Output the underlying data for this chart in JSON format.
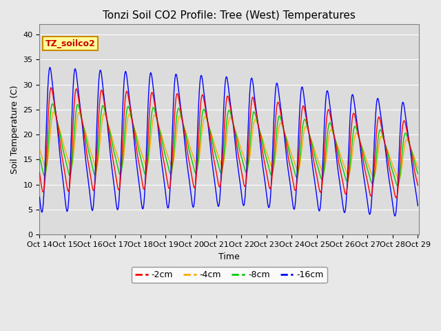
{
  "title": "Tonzi Soil CO2 Profile: Tree (West) Temperatures",
  "xlabel": "Time",
  "ylabel": "Soil Temperature (C)",
  "ylim": [
    0,
    42
  ],
  "yticks": [
    0,
    5,
    10,
    15,
    20,
    25,
    30,
    35,
    40
  ],
  "xtick_labels": [
    "Oct 14",
    "Oct 15",
    "Oct 16",
    "Oct 17",
    "Oct 18",
    "Oct 19",
    "Oct 20",
    "Oct 21",
    "Oct 22",
    "Oct 23",
    "Oct 24",
    "Oct 25",
    "Oct 26",
    "Oct 27",
    "Oct 28",
    "Oct 29"
  ],
  "series_colors": [
    "#ff0000",
    "#ffaa00",
    "#00cc00",
    "#0000ff"
  ],
  "series_labels": [
    "-2cm",
    "-4cm",
    "-8cm",
    "-16cm"
  ],
  "legend_label": "TZ_soilco2",
  "legend_bg": "#ffff99",
  "legend_border": "#cc8800",
  "fig_bg": "#e8e8e8",
  "plot_bg": "#dcdcdc",
  "title_fontsize": 11,
  "axis_fontsize": 8,
  "legend_fontsize": 9,
  "n_points": 2000,
  "start_day": 14,
  "end_day": 29
}
